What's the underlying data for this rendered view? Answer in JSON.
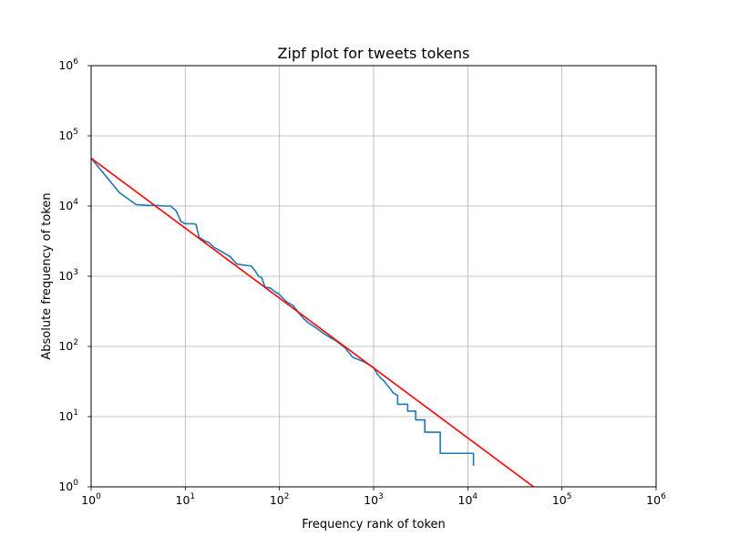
{
  "chart_data": {
    "type": "line",
    "title": "Zipf plot for tweets tokens",
    "xlabel": "Frequency rank of token",
    "ylabel": "Absolute frequency of token",
    "xscale": "log",
    "yscale": "log",
    "xlim": [
      1,
      1000000
    ],
    "ylim": [
      1,
      1000000
    ],
    "grid": true,
    "xticks": [
      {
        "base": "10",
        "exp": "0"
      },
      {
        "base": "10",
        "exp": "1"
      },
      {
        "base": "10",
        "exp": "2"
      },
      {
        "base": "10",
        "exp": "3"
      },
      {
        "base": "10",
        "exp": "4"
      },
      {
        "base": "10",
        "exp": "5"
      },
      {
        "base": "10",
        "exp": "6"
      }
    ],
    "yticks": [
      {
        "base": "10",
        "exp": "0"
      },
      {
        "base": "10",
        "exp": "1"
      },
      {
        "base": "10",
        "exp": "2"
      },
      {
        "base": "10",
        "exp": "3"
      },
      {
        "base": "10",
        "exp": "4"
      },
      {
        "base": "10",
        "exp": "5"
      },
      {
        "base": "10",
        "exp": "6"
      }
    ],
    "series": [
      {
        "color": "#1f77b4",
        "x": [
          1,
          2,
          3,
          4,
          5,
          6,
          7,
          8,
          9,
          10,
          12,
          13,
          14,
          16,
          18,
          20,
          25,
          30,
          35,
          40,
          50,
          55,
          60,
          65,
          70,
          80,
          90,
          100,
          110,
          120,
          140,
          160,
          180,
          200,
          250,
          300,
          400,
          500,
          600,
          800,
          1000,
          1100,
          1200,
          1300,
          1400,
          1500,
          1600,
          1800,
          1800,
          2300,
          2300,
          2800,
          2800,
          3500,
          3500,
          5100,
          5100,
          11500,
          11500
        ],
        "y": [
          48000,
          15500,
          10500,
          10200,
          10200,
          10000,
          10000,
          8500,
          6000,
          5600,
          5600,
          5500,
          3600,
          3200,
          3000,
          2600,
          2200,
          1900,
          1500,
          1450,
          1400,
          1200,
          1000,
          950,
          700,
          680,
          600,
          550,
          480,
          430,
          380,
          300,
          250,
          220,
          180,
          150,
          120,
          95,
          70,
          60,
          50,
          40,
          35,
          32,
          28,
          25,
          22,
          20,
          15,
          15,
          12,
          12,
          9,
          9,
          6,
          6,
          3,
          3,
          2
        ]
      },
      {
        "color": "#ff0000",
        "x": [
          1,
          50000
        ],
        "y": [
          48000,
          1
        ]
      }
    ]
  }
}
